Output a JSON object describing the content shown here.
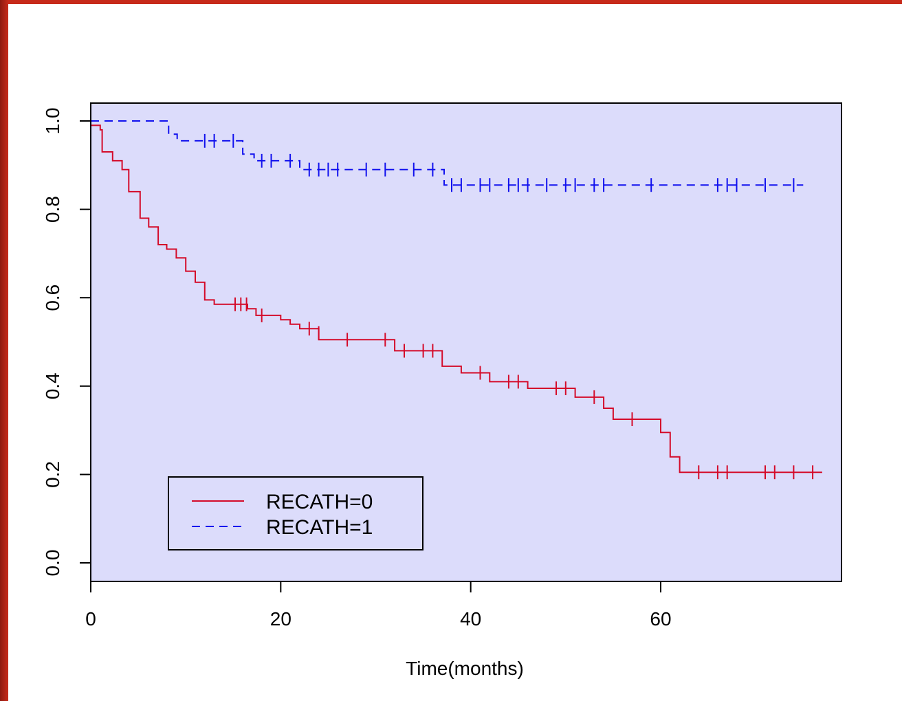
{
  "chart_data": {
    "type": "line",
    "subtype": "kaplan-meier step",
    "title": "",
    "xlabel": "Time(months)",
    "ylabel": "",
    "xlim": [
      0,
      79
    ],
    "ylim": [
      0,
      1.04
    ],
    "x_ticks": [
      0,
      20,
      40,
      60
    ],
    "x_tick_labels": [
      "0",
      "20",
      "40",
      "60"
    ],
    "y_ticks": [
      0.0,
      0.2,
      0.4,
      0.6,
      0.8,
      1.0
    ],
    "y_tick_labels": [
      "0.0",
      "0.2",
      "0.4",
      "0.6",
      "0.8",
      "1.0"
    ],
    "plot_background": "#dcdcfb",
    "legend_position": "bottom-left",
    "series": [
      {
        "name": "RECATH=0",
        "color": "#d40b2a",
        "line_style": "solid",
        "steps": [
          [
            0,
            0.99
          ],
          [
            1,
            0.98
          ],
          [
            1.2,
            0.93
          ],
          [
            2.3,
            0.91
          ],
          [
            3.3,
            0.89
          ],
          [
            4.0,
            0.84
          ],
          [
            5.2,
            0.78
          ],
          [
            6.1,
            0.76
          ],
          [
            7.1,
            0.72
          ],
          [
            8.0,
            0.71
          ],
          [
            9.0,
            0.69
          ],
          [
            10.0,
            0.66
          ],
          [
            11.0,
            0.635
          ],
          [
            12.0,
            0.595
          ],
          [
            13.0,
            0.585
          ],
          [
            16.5,
            0.575
          ],
          [
            17.4,
            0.56
          ],
          [
            20.0,
            0.55
          ],
          [
            21.0,
            0.54
          ],
          [
            22.0,
            0.53
          ],
          [
            24.0,
            0.505
          ],
          [
            32.0,
            0.48
          ],
          [
            37.0,
            0.445
          ],
          [
            39.0,
            0.43
          ],
          [
            42.0,
            0.41
          ],
          [
            46.0,
            0.395
          ],
          [
            51.0,
            0.375
          ],
          [
            54.0,
            0.35
          ],
          [
            55.0,
            0.325
          ],
          [
            60.0,
            0.295
          ],
          [
            61.0,
            0.24
          ],
          [
            62.0,
            0.205
          ],
          [
            77.0,
            0.205
          ]
        ],
        "censor_marks": [
          [
            15.2,
            0.585
          ],
          [
            15.8,
            0.585
          ],
          [
            16.4,
            0.585
          ],
          [
            18.0,
            0.56
          ],
          [
            23.0,
            0.53
          ],
          [
            24.0,
            0.52
          ],
          [
            27.0,
            0.505
          ],
          [
            31.0,
            0.505
          ],
          [
            33.0,
            0.48
          ],
          [
            35.0,
            0.48
          ],
          [
            36.0,
            0.48
          ],
          [
            41.0,
            0.43
          ],
          [
            44.0,
            0.41
          ],
          [
            45.0,
            0.41
          ],
          [
            49.0,
            0.395
          ],
          [
            50.0,
            0.395
          ],
          [
            53.0,
            0.375
          ],
          [
            57.0,
            0.325
          ],
          [
            64.0,
            0.205
          ],
          [
            66.0,
            0.205
          ],
          [
            67.0,
            0.205
          ],
          [
            71.0,
            0.205
          ],
          [
            72.0,
            0.205
          ],
          [
            74.0,
            0.205
          ],
          [
            76.0,
            0.205
          ]
        ]
      },
      {
        "name": "RECATH=1",
        "color": "#1111ee",
        "line_style": "dashed",
        "steps": [
          [
            0,
            1.0
          ],
          [
            8.2,
            0.97
          ],
          [
            9.1,
            0.955
          ],
          [
            16.0,
            0.925
          ],
          [
            17.2,
            0.91
          ],
          [
            22.0,
            0.89
          ],
          [
            37.2,
            0.855
          ],
          [
            75.0,
            0.855
          ]
        ],
        "censor_marks": [
          [
            12.0,
            0.955
          ],
          [
            13.0,
            0.955
          ],
          [
            15.0,
            0.955
          ],
          [
            18.0,
            0.91
          ],
          [
            19.0,
            0.91
          ],
          [
            21.0,
            0.91
          ],
          [
            23.0,
            0.89
          ],
          [
            24.0,
            0.89
          ],
          [
            25.0,
            0.89
          ],
          [
            26.0,
            0.89
          ],
          [
            29.0,
            0.89
          ],
          [
            31.0,
            0.89
          ],
          [
            34.0,
            0.89
          ],
          [
            36.0,
            0.89
          ],
          [
            38.0,
            0.855
          ],
          [
            39.0,
            0.855
          ],
          [
            41.0,
            0.855
          ],
          [
            42.0,
            0.855
          ],
          [
            44.0,
            0.855
          ],
          [
            45.0,
            0.855
          ],
          [
            46.0,
            0.855
          ],
          [
            48.0,
            0.855
          ],
          [
            50.0,
            0.855
          ],
          [
            51.0,
            0.855
          ],
          [
            53.0,
            0.855
          ],
          [
            54.0,
            0.855
          ],
          [
            59.0,
            0.855
          ],
          [
            66.0,
            0.855
          ],
          [
            67.0,
            0.855
          ],
          [
            68.0,
            0.855
          ],
          [
            71.0,
            0.855
          ],
          [
            74.0,
            0.855
          ]
        ]
      }
    ]
  }
}
